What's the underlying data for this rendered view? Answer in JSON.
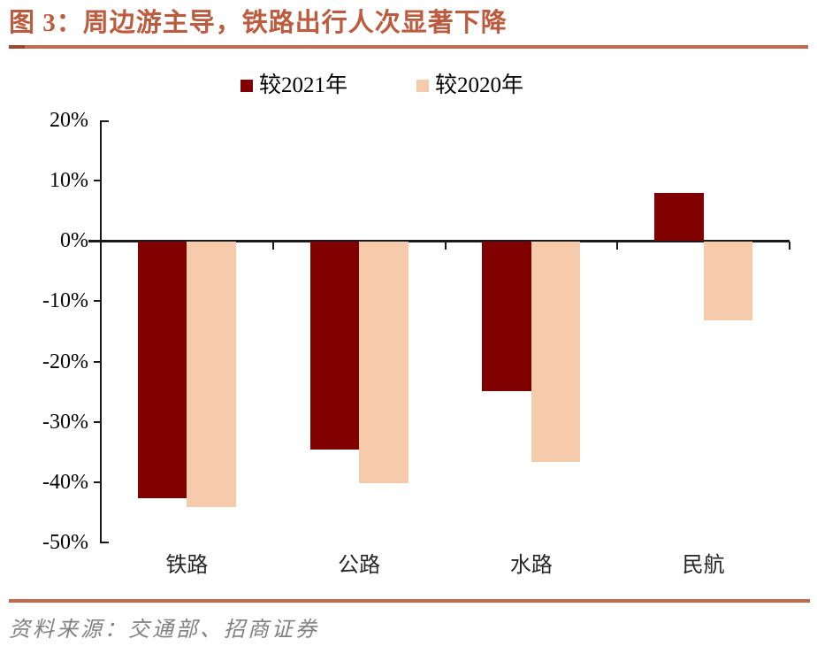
{
  "header": {
    "title": "图 3：周边游主导，铁路出行人次显著下降"
  },
  "chart_data": {
    "type": "bar",
    "title": "图 3：周边游主导，铁路出行人次显著下降",
    "categories": [
      "铁路",
      "公路",
      "水路",
      "民航"
    ],
    "series": [
      {
        "name": "较2021年",
        "color": "#800000",
        "values": [
          -42.5,
          -34.5,
          -24.8,
          8
        ]
      },
      {
        "name": "较2020年",
        "color": "#F5CBAC",
        "values": [
          -44,
          -40,
          -36.5,
          -13
        ]
      }
    ],
    "ylim": [
      -50,
      20
    ],
    "y_tick_step": 10,
    "y_tick_labels": [
      "20%",
      "10%",
      "0%",
      "-10%",
      "-20%",
      "-30%",
      "-40%",
      "-50%"
    ],
    "grid": false,
    "legend_position": "top",
    "xlabel": "",
    "ylabel": ""
  },
  "footer": {
    "source": "资料来源：交通部、招商证券"
  },
  "colors": {
    "title": "#BD5B3E",
    "rule": "#C1694E",
    "rule_accent": "#9C4733",
    "axis": "#1a1a1a",
    "series_1": "#800000",
    "series_2": "#F5CBAC",
    "footer_text": "#818181"
  }
}
